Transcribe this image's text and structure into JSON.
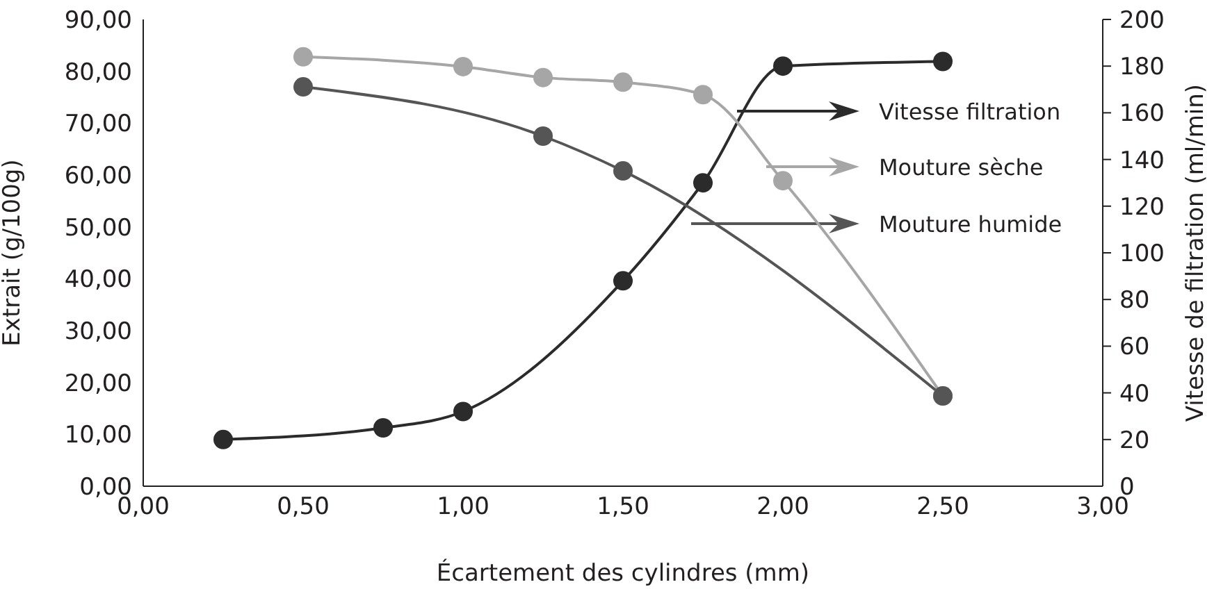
{
  "chart_data": {
    "type": "line",
    "xlabel": "Écartement des cylindres (mm)",
    "ylabel": "Extrait (g/100g)",
    "y2label": "Vitesse de filtration (ml/min)",
    "xlim": [
      0,
      3
    ],
    "xticks": [
      {
        "value": 0,
        "label": "0,00"
      },
      {
        "value": 0.5,
        "label": "0,50"
      },
      {
        "value": 1,
        "label": "1,00"
      },
      {
        "value": 1.5,
        "label": "1,50"
      },
      {
        "value": 2,
        "label": "2,00"
      },
      {
        "value": 2.5,
        "label": "2,50"
      },
      {
        "value": 3,
        "label": "3,00"
      }
    ],
    "ylim": [
      0,
      90
    ],
    "yticks": [
      {
        "value": 0,
        "label": "0,00"
      },
      {
        "value": 10,
        "label": "10,00"
      },
      {
        "value": 20,
        "label": "20,00"
      },
      {
        "value": 30,
        "label": "30,00"
      },
      {
        "value": 40,
        "label": "40,00"
      },
      {
        "value": 50,
        "label": "50,00"
      },
      {
        "value": 60,
        "label": "60,00"
      },
      {
        "value": 70,
        "label": "70,00"
      },
      {
        "value": 80,
        "label": "80,00"
      },
      {
        "value": 90,
        "label": "90,00"
      }
    ],
    "y2lim": [
      0,
      200
    ],
    "y2ticks": [
      0,
      20,
      40,
      60,
      80,
      100,
      120,
      140,
      160,
      180,
      200
    ],
    "marker": "circle",
    "grid": false,
    "legend": "right",
    "series": [
      {
        "name": "Vitesse filtration",
        "color": "#2b2b2b",
        "axis": "y2",
        "x": [
          0.25,
          0.75,
          1,
          1.5,
          1.75,
          2,
          2.5
        ],
        "values": [
          20,
          25,
          32,
          88,
          130,
          180,
          182
        ]
      },
      {
        "name": "Mouture sèche",
        "color": "#a6a6a6",
        "x": [
          0.5,
          1,
          1.25,
          1.5,
          1.75,
          2,
          2.5
        ],
        "values": [
          82.8,
          80.9,
          78.8,
          77.9,
          75.5,
          58.9,
          17.4
        ]
      },
      {
        "name": "Mouture humide",
        "color": "#555555",
        "x": [
          0.5,
          1.25,
          1.5,
          2.5
        ],
        "values": [
          77,
          67.5,
          60.8,
          17.4
        ]
      }
    ]
  }
}
